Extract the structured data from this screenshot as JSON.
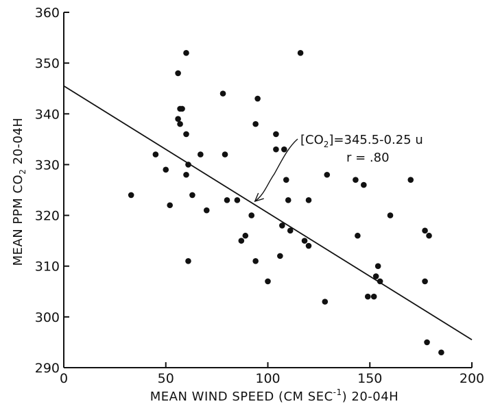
{
  "chart_data": {
    "type": "scatter",
    "title": "",
    "xlabel": {
      "main": "MEAN WIND SPEED (CM SEC",
      "sup": "-1",
      "tail": ") 20-04H"
    },
    "ylabel": {
      "main": "MEAN PPM CO",
      "sub": "2",
      "tail": "  20-04H"
    },
    "xlim": [
      0,
      200
    ],
    "ylim": [
      290,
      360
    ],
    "xticks": [
      "0",
      "50",
      "100",
      "150",
      "200"
    ],
    "yticks": [
      "290",
      "300",
      "310",
      "320",
      "330",
      "340",
      "350",
      "360"
    ],
    "grid": false,
    "regression": {
      "intercept": 345.5,
      "slope": -0.25,
      "x_end": 200
    },
    "annotation": {
      "equation_prefix": "[CO",
      "equation_sub": "2",
      "equation_suffix": "]=345.5-0.25 u",
      "r_text": "r = .80",
      "arrow_to": [
        93,
        322.5
      ]
    },
    "points": [
      [
        33,
        324
      ],
      [
        45,
        332
      ],
      [
        50,
        329
      ],
      [
        52,
        322
      ],
      [
        56,
        339
      ],
      [
        56,
        348
      ],
      [
        57,
        341
      ],
      [
        57,
        338
      ],
      [
        58,
        341
      ],
      [
        60,
        352
      ],
      [
        60,
        336
      ],
      [
        60,
        328
      ],
      [
        61,
        330
      ],
      [
        61,
        311
      ],
      [
        63,
        324
      ],
      [
        67,
        332
      ],
      [
        70,
        321
      ],
      [
        78,
        344
      ],
      [
        79,
        332
      ],
      [
        80,
        323
      ],
      [
        85,
        323
      ],
      [
        87,
        315
      ],
      [
        89,
        316
      ],
      [
        92,
        320
      ],
      [
        94,
        338
      ],
      [
        94,
        311
      ],
      [
        95,
        343
      ],
      [
        100,
        307
      ],
      [
        104,
        336
      ],
      [
        104,
        333
      ],
      [
        106,
        312
      ],
      [
        107,
        318
      ],
      [
        108,
        333
      ],
      [
        109,
        327
      ],
      [
        110,
        323
      ],
      [
        111,
        317
      ],
      [
        116,
        352
      ],
      [
        118,
        315
      ],
      [
        120,
        323
      ],
      [
        120,
        314
      ],
      [
        128,
        303
      ],
      [
        129,
        328
      ],
      [
        143,
        327
      ],
      [
        144,
        316
      ],
      [
        147,
        326
      ],
      [
        149,
        304
      ],
      [
        152,
        304
      ],
      [
        153,
        308
      ],
      [
        154,
        310
      ],
      [
        155,
        307
      ],
      [
        160,
        320
      ],
      [
        170,
        327
      ],
      [
        177,
        307
      ],
      [
        177,
        317
      ],
      [
        178,
        295
      ],
      [
        179,
        316
      ],
      [
        185,
        293
      ]
    ]
  }
}
